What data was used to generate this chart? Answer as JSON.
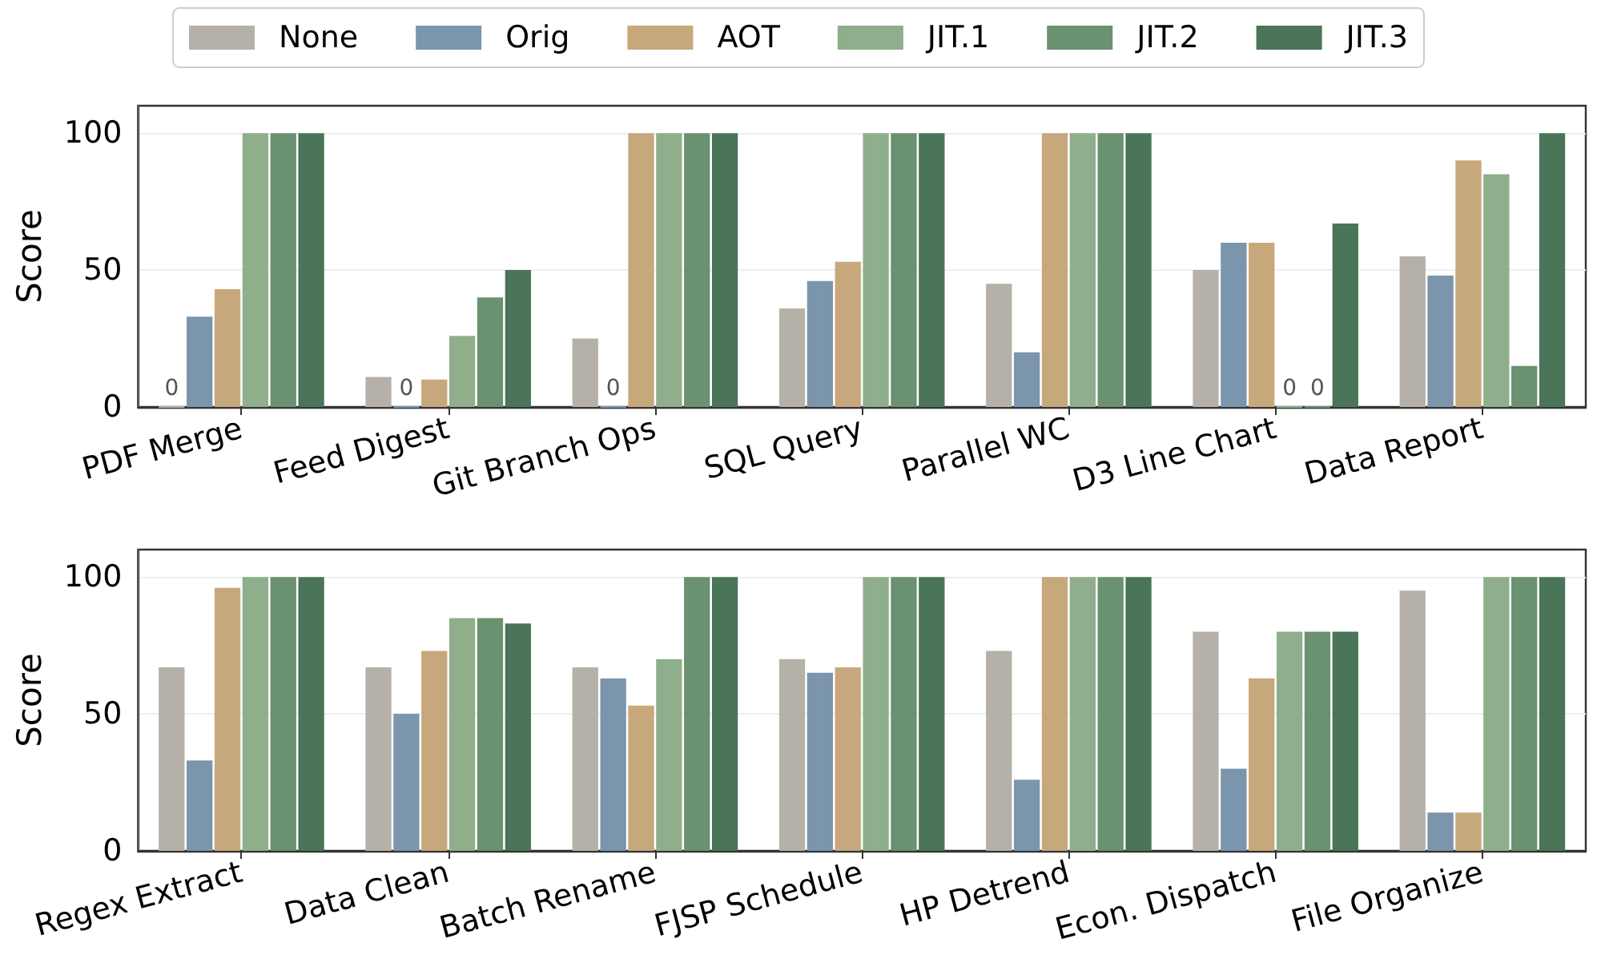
{
  "chart_data": [
    {
      "type": "bar",
      "ylabel": "Score",
      "categories": [
        "PDF Merge",
        "Feed Digest",
        "Git Branch Ops",
        "SQL Query",
        "Parallel WC",
        "D3 Line Chart",
        "Data Report"
      ],
      "series": [
        {
          "name": "None",
          "color": "#b5b1a8",
          "values": [
            0,
            11,
            25,
            36,
            45,
            50,
            55
          ],
          "value_labels": [
            "0",
            null,
            null,
            null,
            null,
            null,
            null
          ]
        },
        {
          "name": "Orig",
          "color": "#7b95ad",
          "values": [
            33,
            0,
            0,
            46,
            20,
            60,
            48
          ],
          "value_labels": [
            null,
            "0",
            "0",
            null,
            null,
            null,
            null
          ]
        },
        {
          "name": "AOT",
          "color": "#c6a87c",
          "values": [
            43,
            10,
            100,
            53,
            100,
            60,
            90
          ]
        },
        {
          "name": "JIT.1",
          "color": "#8fae8b",
          "values": [
            100,
            26,
            100,
            100,
            100,
            0,
            85
          ],
          "value_labels": [
            null,
            null,
            null,
            null,
            null,
            "0",
            null
          ]
        },
        {
          "name": "JIT.2",
          "color": "#6a9170",
          "values": [
            100,
            40,
            100,
            100,
            100,
            0,
            15
          ],
          "value_labels": [
            null,
            null,
            null,
            null,
            null,
            "0",
            null
          ]
        },
        {
          "name": "JIT.3",
          "color": "#4a7558",
          "values": [
            100,
            50,
            100,
            100,
            100,
            67,
            100
          ]
        }
      ],
      "ylim": [
        0,
        110
      ],
      "yticks": [
        0,
        50,
        100
      ],
      "grid": "y",
      "legend": "top"
    },
    {
      "type": "bar",
      "ylabel": "Score",
      "categories": [
        "Regex Extract",
        "Data Clean",
        "Batch Rename",
        "FJSP Schedule",
        "HP Detrend",
        "Econ. Dispatch",
        "File Organize"
      ],
      "series": [
        {
          "name": "None",
          "color": "#b5b1a8",
          "values": [
            67,
            67,
            67,
            70,
            73,
            80,
            95
          ]
        },
        {
          "name": "Orig",
          "color": "#7b95ad",
          "values": [
            33,
            50,
            63,
            65,
            26,
            30,
            14
          ]
        },
        {
          "name": "AOT",
          "color": "#c6a87c",
          "values": [
            96,
            73,
            53,
            67,
            100,
            63,
            14
          ]
        },
        {
          "name": "JIT.1",
          "color": "#8fae8b",
          "values": [
            100,
            85,
            70,
            100,
            100,
            80,
            100
          ]
        },
        {
          "name": "JIT.2",
          "color": "#6a9170",
          "values": [
            100,
            85,
            100,
            100,
            100,
            80,
            100
          ]
        },
        {
          "name": "JIT.3",
          "color": "#4a7558",
          "values": [
            100,
            83,
            100,
            100,
            100,
            80,
            100
          ]
        }
      ],
      "ylim": [
        0,
        110
      ],
      "yticks": [
        0,
        50,
        100
      ],
      "grid": "y"
    }
  ]
}
